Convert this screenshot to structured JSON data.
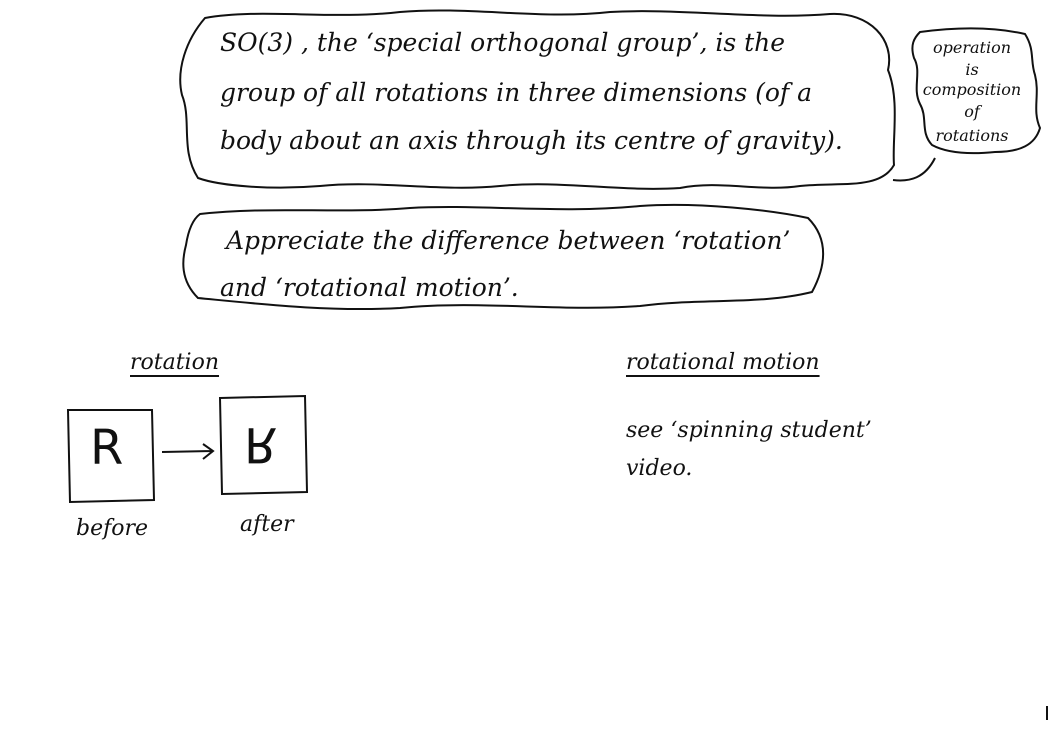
{
  "main_note": {
    "line1": "SO(3) , the ‘special orthogonal group’, is the",
    "line2": "group of all rotations in three dimensions (of a",
    "line3": "body about an axis through its centre of gravity)."
  },
  "side_note": {
    "line1": "operation",
    "line2": "is",
    "line3": "composition",
    "line4": "of",
    "line5": "rotations"
  },
  "difference_note": {
    "line1": "Appreciate the difference between ‘rotation’",
    "line2": "and ‘rotational motion’."
  },
  "rotation_section": {
    "heading": "rotation",
    "before_letter": "R",
    "after_letter": "R",
    "before_label": "before",
    "after_label": "after"
  },
  "motion_section": {
    "heading": "rotational motion",
    "line1": "see ‘spinning student’",
    "line2": "video."
  }
}
